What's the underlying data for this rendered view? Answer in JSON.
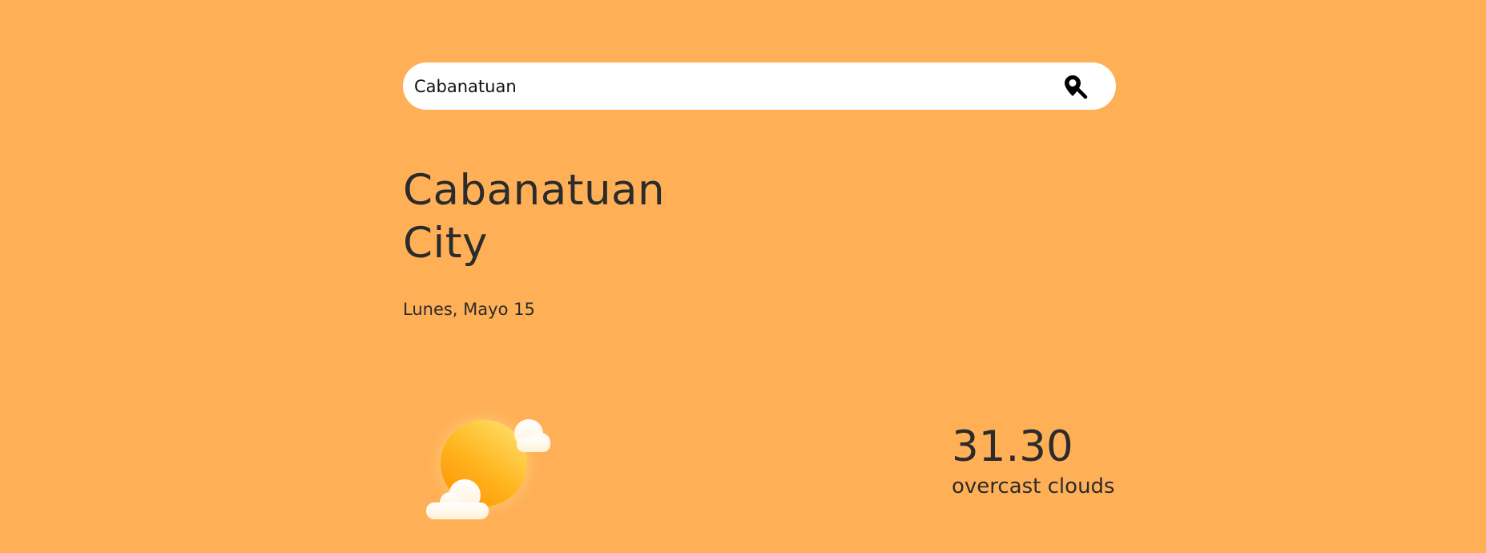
{
  "search": {
    "value": "Cabanatuan",
    "placeholder": "",
    "button_icon": "map-search-icon"
  },
  "location": {
    "city_line1": "Cabanatuan",
    "city_line2": "City",
    "date": "Lunes, Mayo 15"
  },
  "weather": {
    "icon": "partly-cloudy-sun-icon",
    "temperature": "31.30",
    "condition": "overcast clouds"
  },
  "colors": {
    "background": "#ffb057",
    "search_bg": "#ffffff",
    "text": "#2b2b2b",
    "sun": "#ffa91a"
  }
}
